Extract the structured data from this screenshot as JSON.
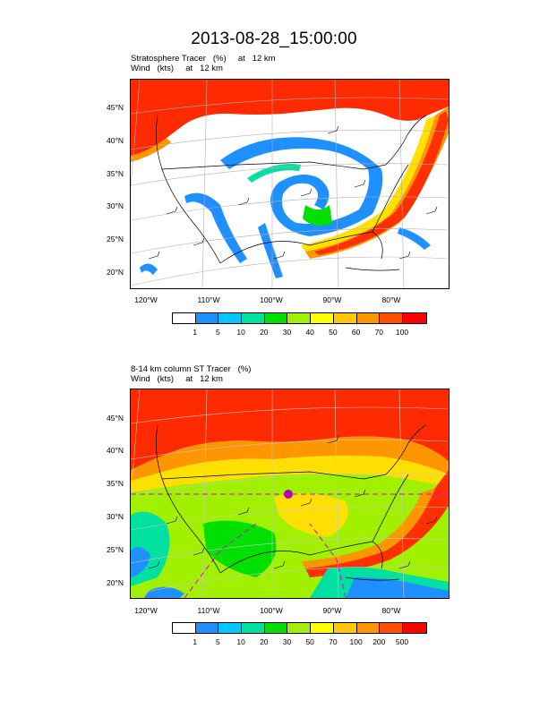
{
  "title": "2013-08-28_15:00:00",
  "panel1": {
    "line1": "Stratosphere Tracer   (%)     at   12 km",
    "line2": "Wind   (kts)     at   12 km",
    "lat_labels": [
      "45°N",
      "40°N",
      "35°N",
      "30°N",
      "25°N",
      "20°N"
    ],
    "lon_labels": [
      "120°W",
      "110°W",
      "100°W",
      "90°W",
      "80°W"
    ],
    "colorbar_labels": [
      "1",
      "5",
      "10",
      "20",
      "30",
      "40",
      "50",
      "60",
      "70",
      "100"
    ]
  },
  "panel2": {
    "line1": "8-14 km column ST Tracer   (%)",
    "line2": "Wind   (kts)     at   12 km",
    "lat_labels": [
      "45°N",
      "40°N",
      "35°N",
      "30°N",
      "25°N",
      "20°N"
    ],
    "lon_labels": [
      "120°W",
      "110°W",
      "100°W",
      "90°W",
      "80°W"
    ],
    "colorbar_labels": [
      "1",
      "5",
      "10",
      "20",
      "30",
      "50",
      "70",
      "100",
      "200",
      "500"
    ]
  },
  "colorbar_colors": [
    "#ffffff",
    "#1e90ff",
    "#00c8ff",
    "#00e0a0",
    "#00e000",
    "#a0f000",
    "#ffff00",
    "#ffc800",
    "#ff9600",
    "#ff5000",
    "#ff0000"
  ]
}
